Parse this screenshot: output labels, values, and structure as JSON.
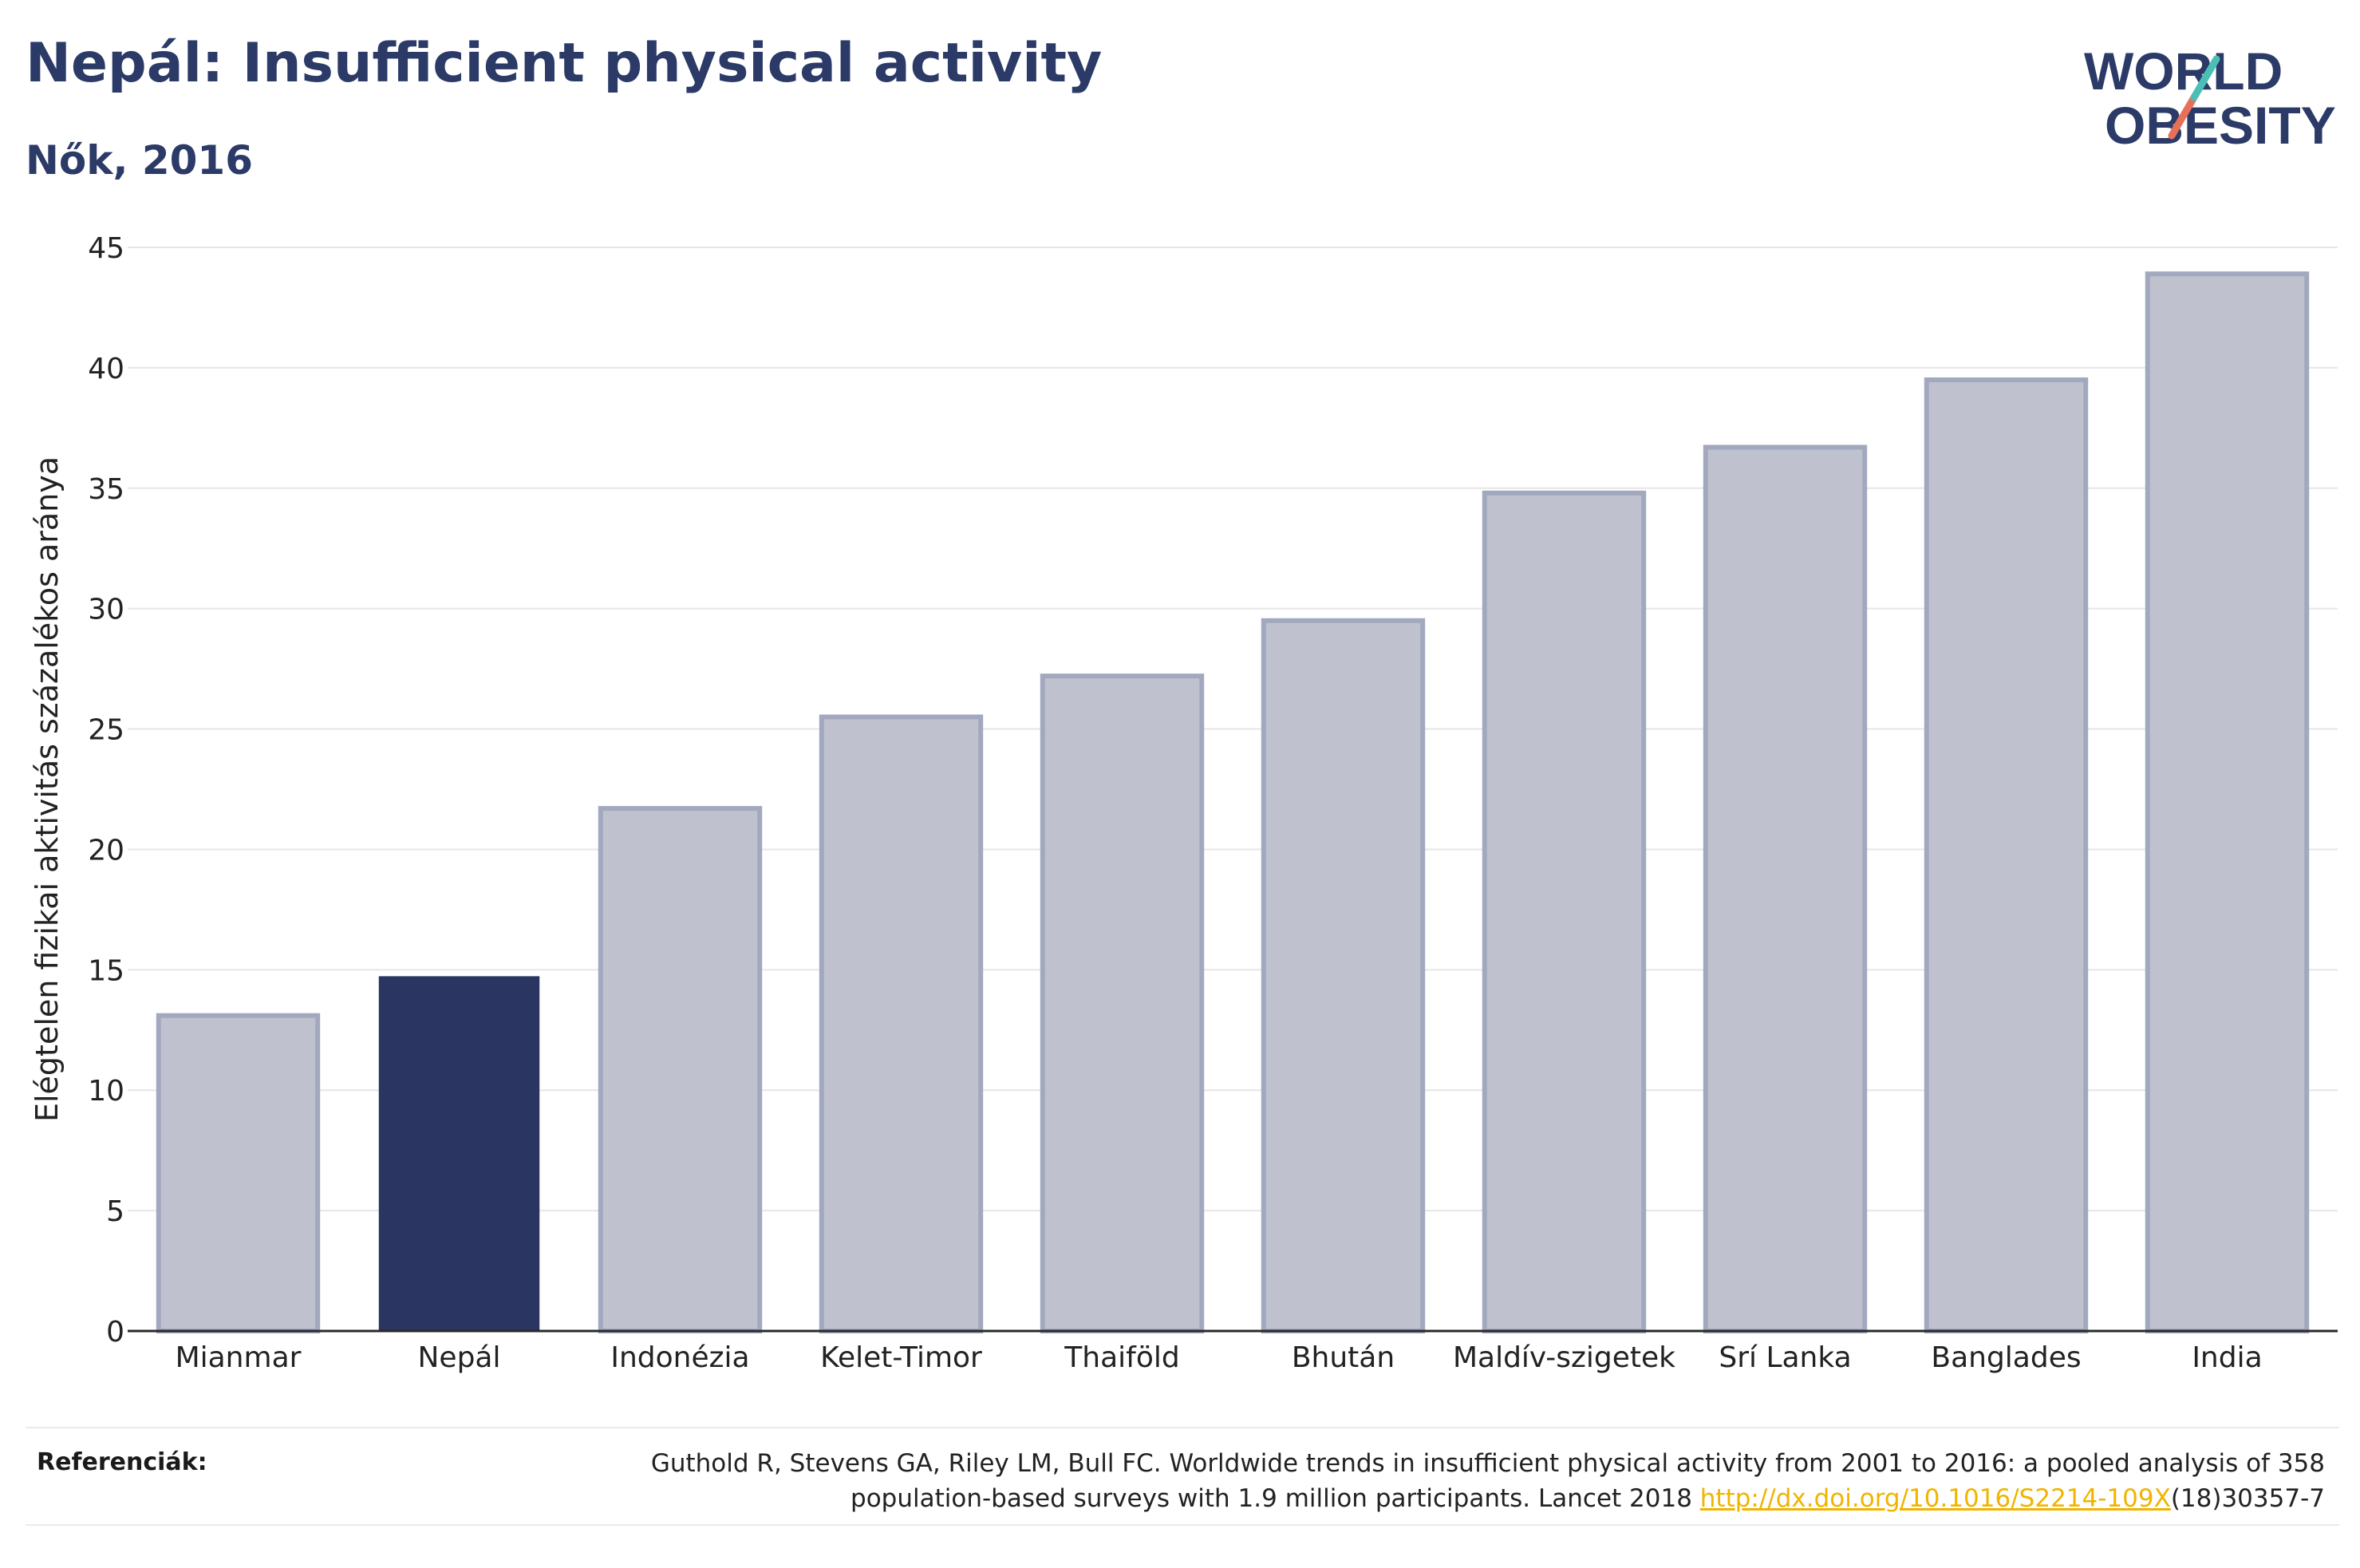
{
  "title": "Nepál: Insufficient physical activity",
  "subtitle": "Nők, 2016",
  "logo": {
    "line1": "WORLD",
    "line2": "OBESITY",
    "accent_colors": [
      "#4bbfb5",
      "#e8705a"
    ],
    "text_color": "#2b3a67"
  },
  "chart_data": {
    "type": "bar",
    "categories": [
      "Mianmar",
      "Nepál",
      "Indonézia",
      "Kelet-Timor",
      "Thaiföld",
      "Bhután",
      "Maldív-szigetek",
      "Srí Lanka",
      "Banglades",
      "India"
    ],
    "values": [
      13.1,
      14.7,
      21.7,
      25.5,
      27.2,
      29.5,
      34.8,
      36.7,
      39.5,
      43.9
    ],
    "highlight": "Nepál",
    "highlight_color": "#2b3561",
    "bar_color": "#bfc2ce",
    "bar_border_color": "#a2a8be",
    "title": "Nepál: Insufficient physical activity",
    "subtitle": "Nők, 2016",
    "xlabel": "",
    "ylabel": "Elégtelen fizikai aktivitás százalékos aránya",
    "ylim": [
      0,
      45
    ],
    "yticks": [
      0,
      5,
      10,
      15,
      20,
      25,
      30,
      35,
      40,
      45
    ],
    "grid": true,
    "legend": "none"
  },
  "references": {
    "label": "Referenciák:",
    "text_before": "Guthold R, Stevens GA, Riley LM, Bull FC. Worldwide trends in insufficient physical activity from 2001 to 2016: a pooled analysis of 358 population-based surveys with 1.9 million participants. Lancet 2018 ",
    "link_text": "http://dx.doi.org/10.1016/S2214-109X",
    "text_after": "(18)30357-7"
  }
}
